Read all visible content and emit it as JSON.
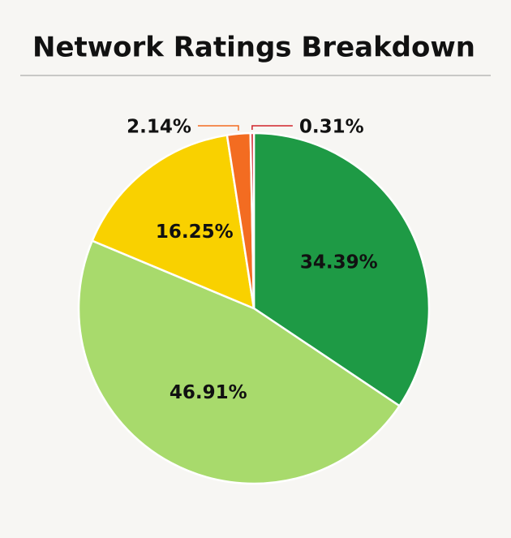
{
  "chart_data": {
    "type": "pie",
    "title": "Network Ratings Breakdown",
    "values": [
      34.39,
      46.91,
      16.25,
      2.14,
      0.31
    ],
    "value_labels": [
      "34.39%",
      "46.91%",
      "16.25%",
      "2.14%",
      "0.31%"
    ],
    "colors": [
      "#1e9a45",
      "#a8da6c",
      "#f9d100",
      "#f36c21",
      "#d0232a"
    ],
    "start_angle": 0,
    "direction": "clockwise"
  }
}
